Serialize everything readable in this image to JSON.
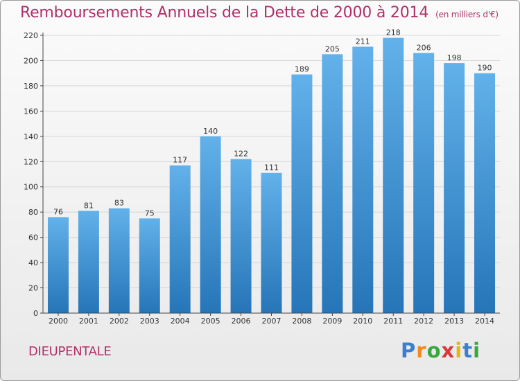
{
  "header": {
    "title": "Remboursements Annuels de la Dette de 2000 à 2014",
    "unit": "(en milliers d'€)"
  },
  "commune": "DIEUPENTALE",
  "logo": {
    "letters": [
      "P",
      "r",
      "o",
      "x",
      "i",
      "t",
      "i"
    ],
    "colors": [
      "#3a7fd0",
      "#f08a1c",
      "#39a83c",
      "#d8383c",
      "#e0b90e",
      "#3a7fd0",
      "#39a83c"
    ]
  },
  "colors": {
    "bar_top": "#62b1ea",
    "bar_bottom": "#2675b8",
    "axis": "#444444",
    "grid": "#d6d6d6"
  },
  "chart_data": {
    "type": "bar",
    "title": "Remboursements Annuels de la Dette de 2000 à 2014",
    "xlabel": "",
    "ylabel": "",
    "ylim": [
      0,
      220
    ],
    "yticks": [
      0,
      20,
      40,
      60,
      80,
      100,
      120,
      140,
      160,
      180,
      200,
      220
    ],
    "grid": true,
    "categories": [
      "2000",
      "2001",
      "2002",
      "2003",
      "2004",
      "2005",
      "2006",
      "2007",
      "2008",
      "2009",
      "2010",
      "2011",
      "2012",
      "2013",
      "2014"
    ],
    "values": [
      76,
      81,
      83,
      75,
      117,
      140,
      122,
      111,
      189,
      205,
      211,
      218,
      206,
      198,
      190
    ]
  }
}
